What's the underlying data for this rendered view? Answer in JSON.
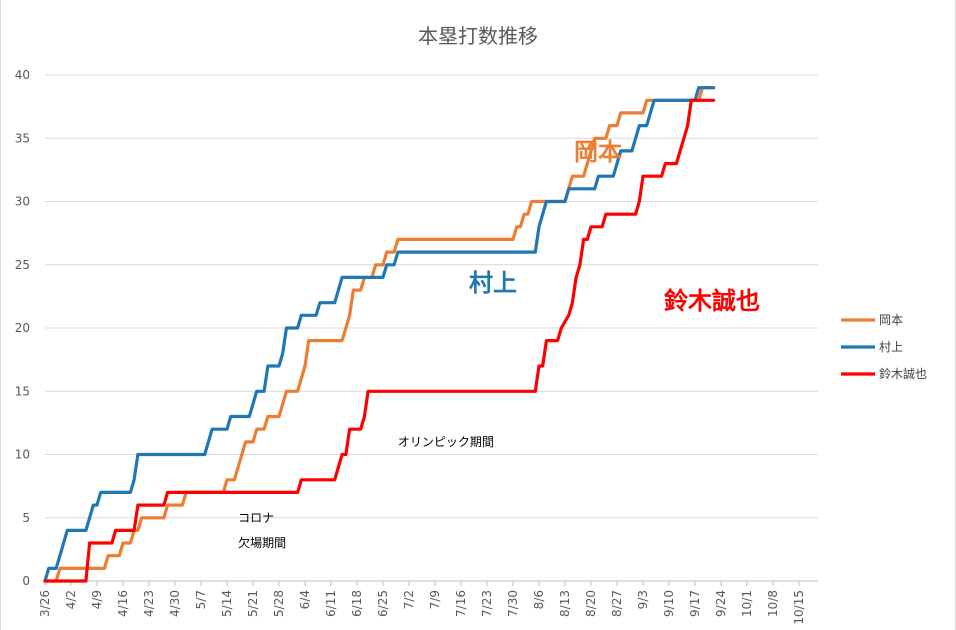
{
  "chart_data": {
    "type": "line",
    "title": "本塁打数推移",
    "xlabel": "",
    "ylabel": "",
    "ylim": [
      0,
      40
    ],
    "yticks": [
      0,
      5,
      10,
      15,
      20,
      25,
      30,
      35,
      40
    ],
    "xticks": [
      "3/26",
      "4/2",
      "4/9",
      "4/16",
      "4/23",
      "4/30",
      "5/7",
      "5/14",
      "5/21",
      "5/28",
      "6/4",
      "6/11",
      "6/18",
      "6/25",
      "7/2",
      "7/9",
      "7/16",
      "7/23",
      "7/30",
      "8/6",
      "8/13",
      "8/20",
      "8/27",
      "9/3",
      "9/10",
      "9/17",
      "9/24",
      "10/1",
      "10/8",
      "10/15"
    ],
    "x_unit": "days",
    "grid": true,
    "legend_position": "right",
    "series": [
      {
        "name": "岡本",
        "color": "#ED7D31",
        "label": "岡本",
        "points": [
          [
            0,
            0
          ],
          [
            3,
            0
          ],
          [
            4,
            1
          ],
          [
            16,
            1
          ],
          [
            17,
            2
          ],
          [
            20,
            2
          ],
          [
            21,
            3
          ],
          [
            23,
            3
          ],
          [
            24,
            4
          ],
          [
            25,
            4
          ],
          [
            26,
            5
          ],
          [
            32,
            5
          ],
          [
            33,
            6
          ],
          [
            37,
            6
          ],
          [
            38,
            7
          ],
          [
            48,
            7
          ],
          [
            49,
            8
          ],
          [
            51,
            8
          ],
          [
            52,
            9
          ],
          [
            53,
            10
          ],
          [
            54,
            11
          ],
          [
            56,
            11
          ],
          [
            57,
            12
          ],
          [
            59,
            12
          ],
          [
            60,
            13
          ],
          [
            63,
            13
          ],
          [
            64,
            14
          ],
          [
            65,
            15
          ],
          [
            68,
            15
          ],
          [
            69,
            16
          ],
          [
            70,
            17
          ],
          [
            71,
            19
          ],
          [
            80,
            19
          ],
          [
            81,
            20
          ],
          [
            82,
            21
          ],
          [
            83,
            23
          ],
          [
            85,
            23
          ],
          [
            86,
            24
          ],
          [
            88,
            24
          ],
          [
            89,
            25
          ],
          [
            91,
            25
          ],
          [
            92,
            26
          ],
          [
            94,
            26
          ],
          [
            95,
            27
          ],
          [
            126,
            27
          ],
          [
            127,
            28
          ],
          [
            128,
            28
          ],
          [
            129,
            29
          ],
          [
            130,
            29
          ],
          [
            131,
            30
          ],
          [
            140,
            30
          ],
          [
            141,
            31
          ],
          [
            142,
            32
          ],
          [
            145,
            32
          ],
          [
            146,
            33
          ],
          [
            147,
            34
          ],
          [
            148,
            35
          ],
          [
            151,
            35
          ],
          [
            152,
            36
          ],
          [
            154,
            36
          ],
          [
            155,
            37
          ],
          [
            161,
            37
          ],
          [
            162,
            38
          ],
          [
            176,
            38
          ],
          [
            177,
            39
          ],
          [
            180,
            39
          ]
        ]
      },
      {
        "name": "村上",
        "color": "#1F77B4",
        "label": "村上",
        "points": [
          [
            0,
            0
          ],
          [
            1,
            1
          ],
          [
            3,
            1
          ],
          [
            4,
            2
          ],
          [
            5,
            3
          ],
          [
            6,
            4
          ],
          [
            11,
            4
          ],
          [
            12,
            5
          ],
          [
            13,
            6
          ],
          [
            14,
            6
          ],
          [
            15,
            7
          ],
          [
            23,
            7
          ],
          [
            24,
            8
          ],
          [
            25,
            10
          ],
          [
            43,
            10
          ],
          [
            44,
            11
          ],
          [
            45,
            12
          ],
          [
            49,
            12
          ],
          [
            50,
            13
          ],
          [
            55,
            13
          ],
          [
            56,
            14
          ],
          [
            57,
            15
          ],
          [
            59,
            15
          ],
          [
            60,
            17
          ],
          [
            63,
            17
          ],
          [
            64,
            18
          ],
          [
            65,
            20
          ],
          [
            68,
            20
          ],
          [
            69,
            21
          ],
          [
            73,
            21
          ],
          [
            74,
            22
          ],
          [
            78,
            22
          ],
          [
            79,
            23
          ],
          [
            80,
            24
          ],
          [
            91,
            24
          ],
          [
            92,
            25
          ],
          [
            94,
            25
          ],
          [
            95,
            26
          ],
          [
            132,
            26
          ],
          [
            133,
            28
          ],
          [
            135,
            30
          ],
          [
            140,
            30
          ],
          [
            141,
            31
          ],
          [
            148,
            31
          ],
          [
            149,
            32
          ],
          [
            153,
            32
          ],
          [
            154,
            33
          ],
          [
            155,
            34
          ],
          [
            158,
            34
          ],
          [
            159,
            35
          ],
          [
            160,
            36
          ],
          [
            162,
            36
          ],
          [
            163,
            37
          ],
          [
            164,
            38
          ],
          [
            175,
            38
          ],
          [
            176,
            39
          ],
          [
            180,
            39
          ]
        ]
      },
      {
        "name": "鈴木誠也",
        "color": "#FF0000",
        "label": "鈴木誠也",
        "points": [
          [
            0,
            0
          ],
          [
            11,
            0
          ],
          [
            12,
            3
          ],
          [
            18,
            3
          ],
          [
            19,
            4
          ],
          [
            24,
            4
          ],
          [
            25,
            6
          ],
          [
            32,
            6
          ],
          [
            33,
            7
          ],
          [
            68,
            7
          ],
          [
            69,
            8
          ],
          [
            78,
            8
          ],
          [
            79,
            9
          ],
          [
            80,
            10
          ],
          [
            81,
            10
          ],
          [
            82,
            12
          ],
          [
            85,
            12
          ],
          [
            86,
            13
          ],
          [
            87,
            15
          ],
          [
            132,
            15
          ],
          [
            133,
            17
          ],
          [
            134,
            17
          ],
          [
            135,
            19
          ],
          [
            138,
            19
          ],
          [
            139,
            20
          ],
          [
            141,
            21
          ],
          [
            142,
            22
          ],
          [
            143,
            24
          ],
          [
            144,
            25
          ],
          [
            145,
            27
          ],
          [
            146,
            27
          ],
          [
            147,
            28
          ],
          [
            150,
            28
          ],
          [
            151,
            29
          ],
          [
            159,
            29
          ],
          [
            160,
            30
          ],
          [
            161,
            32
          ],
          [
            166,
            32
          ],
          [
            167,
            33
          ],
          [
            170,
            33
          ],
          [
            171,
            34
          ],
          [
            172,
            35
          ],
          [
            173,
            36
          ],
          [
            174,
            38
          ],
          [
            180,
            38
          ]
        ]
      }
    ],
    "annotations": [
      {
        "text": "オリンピック期間",
        "x": 95,
        "y": 11
      },
      {
        "text": "コロナ",
        "x": 52,
        "y": 5
      },
      {
        "text": "欠場期間",
        "x": 52,
        "y": 3
      }
    ]
  }
}
